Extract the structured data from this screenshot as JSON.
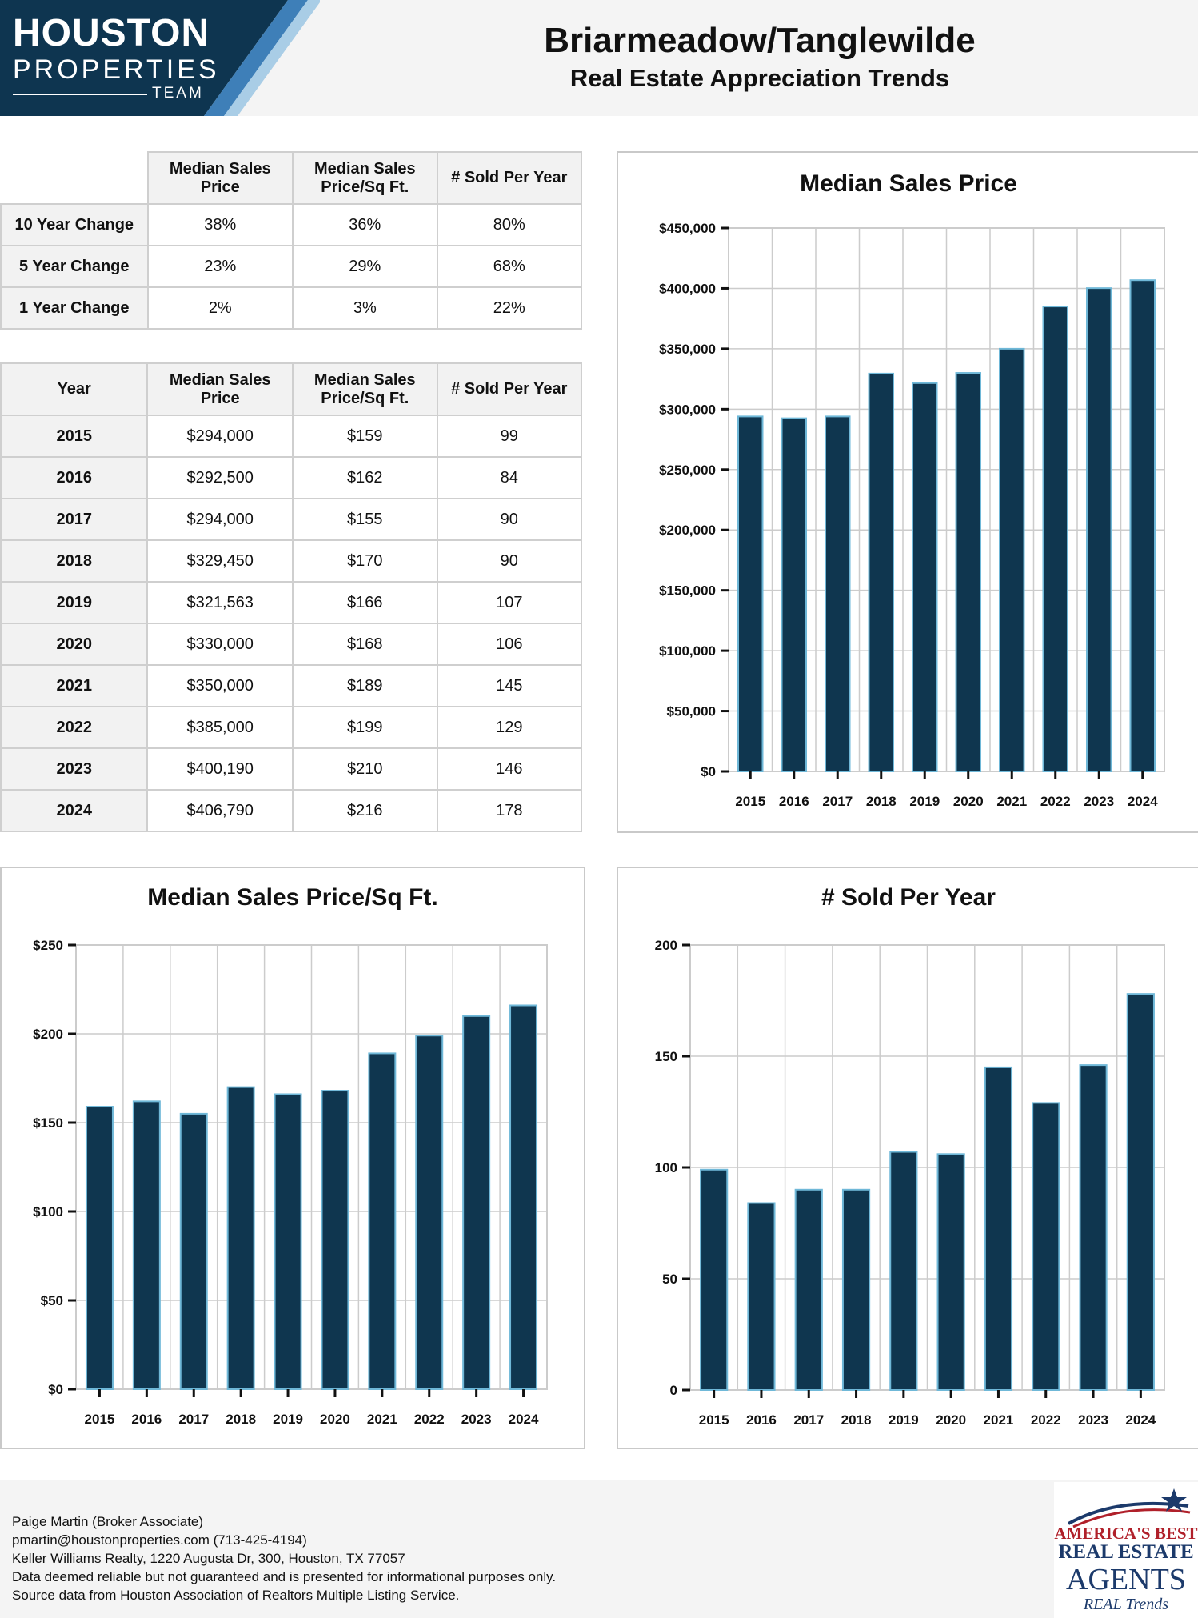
{
  "header": {
    "logo_line1": "HOUSTON",
    "logo_line2": "PROPERTIES",
    "logo_line3": "TEAM",
    "title": "Briarmeadow/Tanglewilde",
    "subtitle": "Real Estate Appreciation Trends"
  },
  "colors": {
    "bar_fill": "#0f364f",
    "bar_edge": "#6fb8d8",
    "logo_navy": "#0e3550",
    "logo_stripe1": "#3e7fb8",
    "logo_stripe2": "#a9cde6",
    "grid": "#cccccc"
  },
  "change_table": {
    "headers": [
      "Median Sales Price",
      "Median Sales Price/Sq Ft.",
      "# Sold Per Year"
    ],
    "header_lines": [
      [
        "Median Sales",
        "Price"
      ],
      [
        "Median Sales",
        "Price/Sq Ft."
      ],
      [
        "# Sold Per Year"
      ]
    ],
    "rows": [
      {
        "label": "10 Year Change",
        "values": [
          "38%",
          "36%",
          "80%"
        ]
      },
      {
        "label": "5 Year Change",
        "values": [
          "23%",
          "29%",
          "68%"
        ]
      },
      {
        "label": "1 Year Change",
        "values": [
          "2%",
          "3%",
          "22%"
        ]
      }
    ]
  },
  "year_table": {
    "year_header": "Year",
    "header_lines": [
      [
        "Median Sales",
        "Price"
      ],
      [
        "Median Sales",
        "Price/Sq Ft."
      ],
      [
        "# Sold Per Year"
      ]
    ],
    "rows": [
      {
        "year": "2015",
        "price": "$294,000",
        "psf": "$159",
        "sold": "99"
      },
      {
        "year": "2016",
        "price": "$292,500",
        "psf": "$162",
        "sold": "84"
      },
      {
        "year": "2017",
        "price": "$294,000",
        "psf": "$155",
        "sold": "90"
      },
      {
        "year": "2018",
        "price": "$329,450",
        "psf": "$170",
        "sold": "90"
      },
      {
        "year": "2019",
        "price": "$321,563",
        "psf": "$166",
        "sold": "107"
      },
      {
        "year": "2020",
        "price": "$330,000",
        "psf": "$168",
        "sold": "106"
      },
      {
        "year": "2021",
        "price": "$350,000",
        "psf": "$189",
        "sold": "145"
      },
      {
        "year": "2022",
        "price": "$385,000",
        "psf": "$199",
        "sold": "129"
      },
      {
        "year": "2023",
        "price": "$400,190",
        "psf": "$210",
        "sold": "146"
      },
      {
        "year": "2024",
        "price": "$406,790",
        "psf": "$216",
        "sold": "178"
      }
    ]
  },
  "chart_data": [
    {
      "id": "price",
      "type": "bar",
      "title": "Median Sales Price",
      "categories": [
        "2015",
        "2016",
        "2017",
        "2018",
        "2019",
        "2020",
        "2021",
        "2022",
        "2023",
        "2024"
      ],
      "values": [
        294000,
        292500,
        294000,
        329450,
        321563,
        330000,
        350000,
        385000,
        400190,
        406790
      ],
      "ylim": [
        0,
        450000
      ],
      "yticks": [
        0,
        50000,
        100000,
        150000,
        200000,
        250000,
        300000,
        350000,
        400000,
        450000
      ],
      "ytick_labels": [
        "$0",
        "$50,000",
        "$100,000",
        "$150,000",
        "$200,000",
        "$250,000",
        "$300,000",
        "$350,000",
        "$400,000",
        "$450,000"
      ],
      "grid": true
    },
    {
      "id": "psf",
      "type": "bar",
      "title": "Median Sales Price/Sq Ft.",
      "categories": [
        "2015",
        "2016",
        "2017",
        "2018",
        "2019",
        "2020",
        "2021",
        "2022",
        "2023",
        "2024"
      ],
      "values": [
        159,
        162,
        155,
        170,
        166,
        168,
        189,
        199,
        210,
        216
      ],
      "ylim": [
        0,
        250
      ],
      "yticks": [
        0,
        50,
        100,
        150,
        200,
        250
      ],
      "ytick_labels": [
        "$0",
        "$50",
        "$100",
        "$150",
        "$200",
        "$250"
      ],
      "grid": true
    },
    {
      "id": "sold",
      "type": "bar",
      "title": "# Sold Per Year",
      "categories": [
        "2015",
        "2016",
        "2017",
        "2018",
        "2019",
        "2020",
        "2021",
        "2022",
        "2023",
        "2024"
      ],
      "values": [
        99,
        84,
        90,
        90,
        107,
        106,
        145,
        129,
        146,
        178
      ],
      "ylim": [
        0,
        200
      ],
      "yticks": [
        0,
        50,
        100,
        150,
        200
      ],
      "ytick_labels": [
        "0",
        "50",
        "100",
        "150",
        "200"
      ],
      "grid": true
    }
  ],
  "footer": {
    "lines": [
      "Paige Martin (Broker Associate)",
      "pmartin@houstonproperties.com (713-425-4194)",
      "Keller Williams Realty, 1220 Augusta Dr, 300, Houston, TX 77057",
      "Data deemed reliable but not guaranteed and is presented for informational purposes only.",
      "Source data from Houston Association of Realtors Multiple Listing Service."
    ],
    "badge_line1": "AMERICA'S BEST",
    "badge_line2": "REAL ESTATE",
    "badge_line3": "AGENTS",
    "badge_line4": "REAL Trends"
  }
}
